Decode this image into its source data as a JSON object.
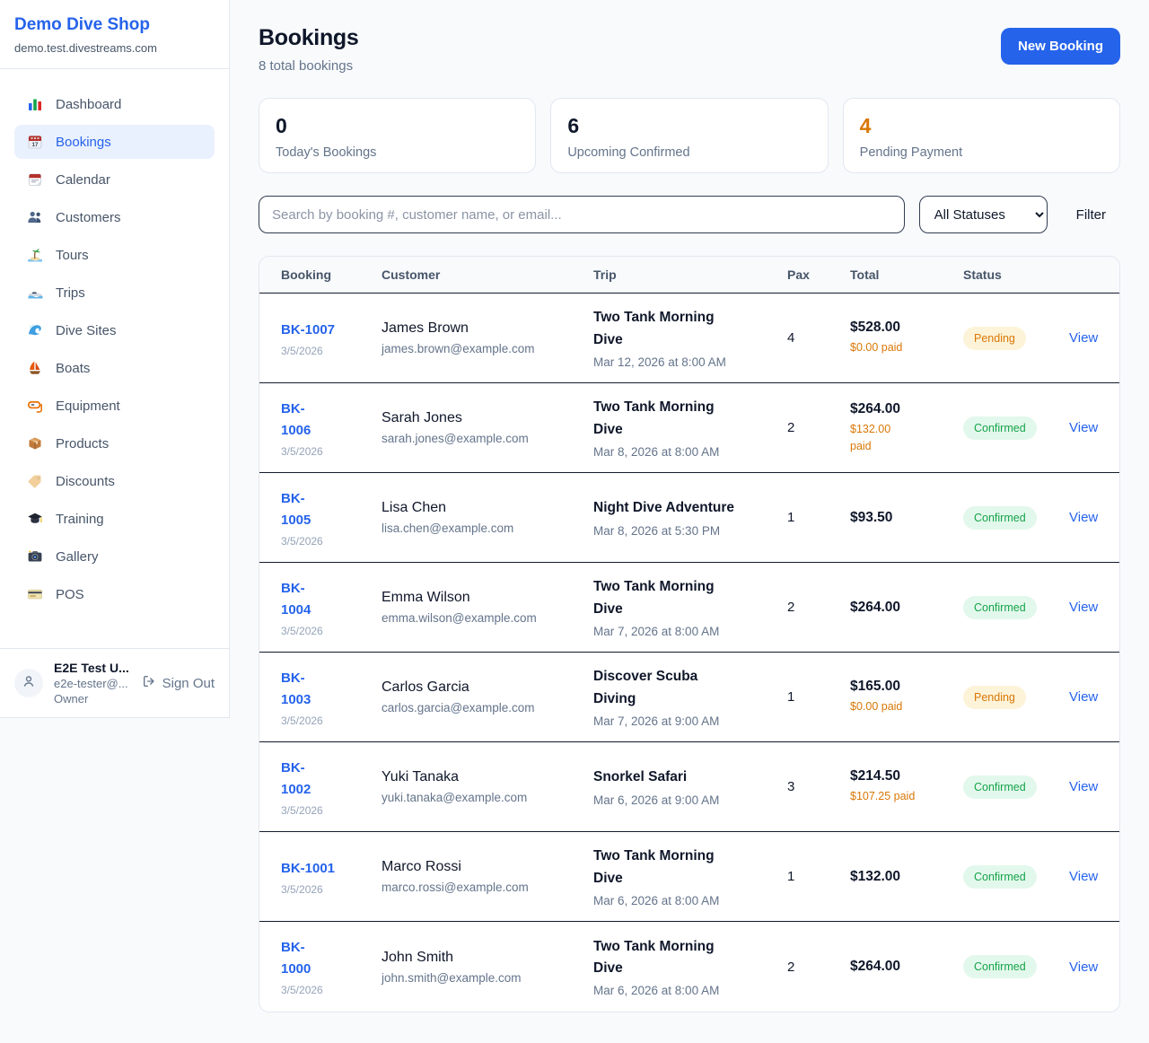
{
  "colors": {
    "accent": "#2563eb",
    "pending_text": "#d97706",
    "pending_bg": "#fdf3d8",
    "confirmed_text": "#16a34a",
    "confirmed_bg": "#e3f8ec",
    "paid": "#d97706"
  },
  "sidebar": {
    "brand": {
      "name": "Demo Dive Shop",
      "domain": "demo.test.divestreams.com"
    },
    "items": [
      {
        "label": "Dashboard",
        "icon": "bar-chart-icon",
        "active": false
      },
      {
        "label": "Bookings",
        "icon": "bookings-calendar-icon",
        "active": true
      },
      {
        "label": "Calendar",
        "icon": "calendar-icon",
        "active": false
      },
      {
        "label": "Customers",
        "icon": "people-icon",
        "active": false
      },
      {
        "label": "Tours",
        "icon": "island-icon",
        "active": false
      },
      {
        "label": "Trips",
        "icon": "speedboat-icon",
        "active": false
      },
      {
        "label": "Dive Sites",
        "icon": "wave-icon",
        "active": false
      },
      {
        "label": "Boats",
        "icon": "sailboat-icon",
        "active": false
      },
      {
        "label": "Equipment",
        "icon": "diving-mask-icon",
        "active": false
      },
      {
        "label": "Products",
        "icon": "package-icon",
        "active": false
      },
      {
        "label": "Discounts",
        "icon": "tag-icon",
        "active": false
      },
      {
        "label": "Training",
        "icon": "graduation-cap-icon",
        "active": false
      },
      {
        "label": "Gallery",
        "icon": "camera-icon",
        "active": false
      },
      {
        "label": "POS",
        "icon": "credit-card-icon",
        "active": false
      }
    ],
    "user": {
      "name": "E2E Test U...",
      "email": "e2e-tester@...",
      "role": "Owner",
      "sign_out_label": "Sign Out"
    }
  },
  "header": {
    "title": "Bookings",
    "subtitle": "8 total bookings",
    "new_booking_label": "New Booking"
  },
  "stats": [
    {
      "value": "0",
      "label": "Today's Bookings"
    },
    {
      "value": "6",
      "label": "Upcoming Confirmed"
    },
    {
      "value": "4",
      "label": "Pending Payment",
      "value_color": "#d97706"
    }
  ],
  "toolbar": {
    "search_placeholder": "Search by booking #, customer name, or email...",
    "status_filter_value": "All Statuses",
    "filter_label": "Filter"
  },
  "table": {
    "columns": [
      "Booking",
      "Customer",
      "Trip",
      "Pax",
      "Total",
      "Status"
    ],
    "view_label": "View",
    "rows": [
      {
        "booking": {
          "id": "BK-1007",
          "id_lines": [
            "BK-1007"
          ],
          "date": "3/5/2026"
        },
        "customer": {
          "name": "James Brown",
          "email": "james.brown@example.com"
        },
        "trip": {
          "name": "Two Tank Morning Dive",
          "name_lines": [
            "Two Tank Morning",
            "Dive"
          ],
          "datetime": "Mar 12, 2026 at 8:00 AM"
        },
        "pax": "4",
        "total": {
          "amount": "$528.00",
          "paid_lines": [
            "$0.00 paid"
          ]
        },
        "status": {
          "label": "Pending",
          "variant": "pending"
        }
      },
      {
        "booking": {
          "id": "BK-1006",
          "id_lines": [
            "BK-",
            "1006"
          ],
          "date": "3/5/2026"
        },
        "customer": {
          "name": "Sarah Jones",
          "email": "sarah.jones@example.com"
        },
        "trip": {
          "name": "Two Tank Morning Dive",
          "name_lines": [
            "Two Tank Morning",
            "Dive"
          ],
          "datetime": "Mar 8, 2026 at 8:00 AM"
        },
        "pax": "2",
        "total": {
          "amount": "$264.00",
          "paid_lines": [
            "$132.00",
            "paid"
          ]
        },
        "status": {
          "label": "Confirmed",
          "variant": "confirmed"
        }
      },
      {
        "booking": {
          "id": "BK-1005",
          "id_lines": [
            "BK-",
            "1005"
          ],
          "date": "3/5/2026"
        },
        "customer": {
          "name": "Lisa Chen",
          "email": "lisa.chen@example.com"
        },
        "trip": {
          "name": "Night Dive Adventure",
          "name_lines": [
            "Night Dive Adventure"
          ],
          "datetime": "Mar 8, 2026 at 5:30 PM"
        },
        "pax": "1",
        "total": {
          "amount": "$93.50",
          "paid_lines": []
        },
        "status": {
          "label": "Confirmed",
          "variant": "confirmed"
        }
      },
      {
        "booking": {
          "id": "BK-1004",
          "id_lines": [
            "BK-",
            "1004"
          ],
          "date": "3/5/2026"
        },
        "customer": {
          "name": "Emma Wilson",
          "email": "emma.wilson@example.com"
        },
        "trip": {
          "name": "Two Tank Morning Dive",
          "name_lines": [
            "Two Tank Morning",
            "Dive"
          ],
          "datetime": "Mar 7, 2026 at 8:00 AM"
        },
        "pax": "2",
        "total": {
          "amount": "$264.00",
          "paid_lines": []
        },
        "status": {
          "label": "Confirmed",
          "variant": "confirmed"
        }
      },
      {
        "booking": {
          "id": "BK-1003",
          "id_lines": [
            "BK-",
            "1003"
          ],
          "date": "3/5/2026"
        },
        "customer": {
          "name": "Carlos Garcia",
          "email": "carlos.garcia@example.com"
        },
        "trip": {
          "name": "Discover Scuba Diving",
          "name_lines": [
            "Discover Scuba",
            "Diving"
          ],
          "datetime": "Mar 7, 2026 at 9:00 AM"
        },
        "pax": "1",
        "total": {
          "amount": "$165.00",
          "paid_lines": [
            "$0.00 paid"
          ]
        },
        "status": {
          "label": "Pending",
          "variant": "pending"
        }
      },
      {
        "booking": {
          "id": "BK-1002",
          "id_lines": [
            "BK-",
            "1002"
          ],
          "date": "3/5/2026"
        },
        "customer": {
          "name": "Yuki Tanaka",
          "email": "yuki.tanaka@example.com"
        },
        "trip": {
          "name": "Snorkel Safari",
          "name_lines": [
            "Snorkel Safari"
          ],
          "datetime": "Mar 6, 2026 at 9:00 AM"
        },
        "pax": "3",
        "total": {
          "amount": "$214.50",
          "paid_lines": [
            "$107.25 paid"
          ]
        },
        "status": {
          "label": "Confirmed",
          "variant": "confirmed"
        }
      },
      {
        "booking": {
          "id": "BK-1001",
          "id_lines": [
            "BK-1001"
          ],
          "date": "3/5/2026"
        },
        "customer": {
          "name": "Marco Rossi",
          "email": "marco.rossi@example.com"
        },
        "trip": {
          "name": "Two Tank Morning Dive",
          "name_lines": [
            "Two Tank Morning",
            "Dive"
          ],
          "datetime": "Mar 6, 2026 at 8:00 AM"
        },
        "pax": "1",
        "total": {
          "amount": "$132.00",
          "paid_lines": []
        },
        "status": {
          "label": "Confirmed",
          "variant": "confirmed"
        }
      },
      {
        "booking": {
          "id": "BK-1000",
          "id_lines": [
            "BK-",
            "1000"
          ],
          "date": "3/5/2026"
        },
        "customer": {
          "name": "John Smith",
          "email": "john.smith@example.com"
        },
        "trip": {
          "name": "Two Tank Morning Dive",
          "name_lines": [
            "Two Tank Morning",
            "Dive"
          ],
          "datetime": "Mar 6, 2026 at 8:00 AM"
        },
        "pax": "2",
        "total": {
          "amount": "$264.00",
          "paid_lines": []
        },
        "status": {
          "label": "Confirmed",
          "variant": "confirmed"
        }
      }
    ]
  }
}
